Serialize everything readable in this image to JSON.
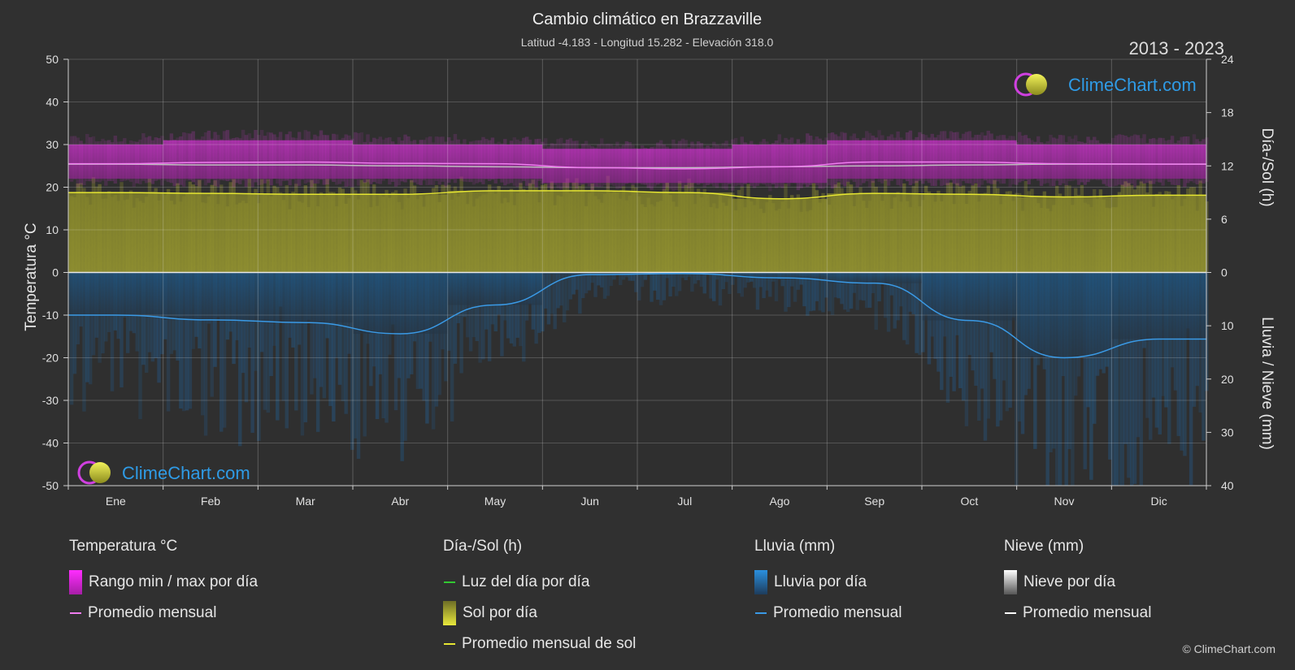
{
  "chart_data": {
    "type": "area",
    "title": "Cambio climático en Brazzaville",
    "subtitle": "Latitud -4.183 - Longitud 15.282 - Elevación 318.0",
    "period": "2013 - 2023",
    "brand": "ClimeChart.com",
    "copyright": "© ClimeChart.com",
    "ylabel_left": "Temperatura °C",
    "ylabel_right_top": "Día-/Sol (h)",
    "ylabel_right_bottom": "Lluvia / Nieve (mm)",
    "months": [
      "Ene",
      "Feb",
      "Mar",
      "Abr",
      "May",
      "Jun",
      "Jul",
      "Ago",
      "Sep",
      "Oct",
      "Nov",
      "Dic"
    ],
    "ylim_temp": [
      -50,
      50
    ],
    "left_ticks": [
      50,
      40,
      30,
      20,
      10,
      0,
      -10,
      -20,
      -30,
      -40,
      -50
    ],
    "right_ticks_sun": [
      24,
      18,
      12,
      6,
      0
    ],
    "right_ticks_rain": [
      10,
      20,
      30,
      40
    ],
    "sun_hours_range": [
      0,
      24
    ],
    "rain_mm_range": [
      0,
      40
    ],
    "grid": true,
    "series": [
      {
        "name": "Rango min / max por día",
        "kind": "temp_range_daily",
        "min": [
          22,
          22,
          22,
          22,
          22,
          21,
          21,
          21,
          22,
          22,
          22,
          22
        ],
        "max": [
          30,
          31,
          31,
          30,
          30,
          29,
          29,
          30,
          31,
          31,
          30,
          30
        ]
      },
      {
        "name": "Promedio mensual",
        "kind": "temp_monthly",
        "values": [
          25.5,
          25.8,
          25.9,
          25.6,
          25.5,
          24.6,
          24.3,
          24.8,
          25.9,
          25.9,
          25.5,
          25.4
        ]
      },
      {
        "name": "Luz del día por día",
        "kind": "daylight",
        "values": [
          12.2,
          12.1,
          12.1,
          12.0,
          11.9,
          11.8,
          11.8,
          11.9,
          12.0,
          12.1,
          12.2,
          12.2
        ]
      },
      {
        "name": "Sol por día",
        "kind": "sun_daily",
        "values": [
          9.0,
          8.9,
          8.8,
          8.8,
          9.2,
          9.2,
          9.0,
          8.3,
          8.9,
          8.8,
          8.5,
          8.7
        ]
      },
      {
        "name": "Promedio mensual de sol",
        "kind": "sun_monthly",
        "values": [
          9.0,
          8.9,
          8.8,
          8.8,
          9.2,
          9.2,
          9.0,
          8.3,
          8.9,
          8.8,
          8.5,
          8.7
        ]
      },
      {
        "name": "Lluvia por día",
        "kind": "rain_daily",
        "values": [
          8.0,
          8.9,
          9.4,
          11.5,
          6.1,
          0.4,
          0.2,
          1.0,
          2.0,
          9.0,
          16.0,
          12.5
        ]
      },
      {
        "name": "Promedio mensual",
        "kind": "rain_monthly",
        "values": [
          8.0,
          8.9,
          9.4,
          11.5,
          6.1,
          0.4,
          0.2,
          1.0,
          2.0,
          9.0,
          16.0,
          12.5
        ]
      },
      {
        "name": "Nieve por día",
        "kind": "snow_daily",
        "values": [
          0,
          0,
          0,
          0,
          0,
          0,
          0,
          0,
          0,
          0,
          0,
          0
        ]
      },
      {
        "name": "Promedio mensual",
        "kind": "snow_monthly",
        "values": [
          0,
          0,
          0,
          0,
          0,
          0,
          0,
          0,
          0,
          0,
          0,
          0
        ]
      }
    ],
    "colors": {
      "background": "#303030",
      "temp_range": "#d63ad6",
      "temp_avg": "#f07cf0",
      "daylight": "#32c832",
      "sun": "#b2b232",
      "sun_avg": "#e6e632",
      "rain": "#1e6eb4",
      "rain_avg": "#3a9ae6",
      "snow": "#ffffff",
      "brand": "#2f9be6"
    }
  },
  "legend": {
    "temp": {
      "heading": "Temperatura °C",
      "range": "Rango min / max por día",
      "avg": "Promedio mensual"
    },
    "sun": {
      "heading": "Día-/Sol (h)",
      "daylight": "Luz del día por día",
      "sun": "Sol por día",
      "avg": "Promedio mensual de sol"
    },
    "rain": {
      "heading": "Lluvia (mm)",
      "daily": "Lluvia por día",
      "avg": "Promedio mensual"
    },
    "snow": {
      "heading": "Nieve (mm)",
      "daily": "Nieve por día",
      "avg": "Promedio mensual"
    }
  }
}
